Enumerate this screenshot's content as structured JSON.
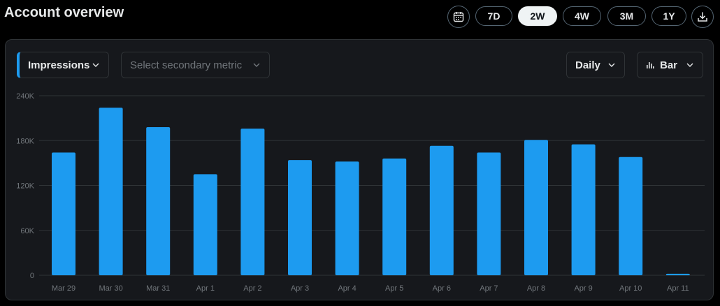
{
  "header": {
    "title": "Account overview",
    "ranges": [
      {
        "label": "7D",
        "active": false
      },
      {
        "label": "2W",
        "active": true
      },
      {
        "label": "4W",
        "active": false
      },
      {
        "label": "3M",
        "active": false
      },
      {
        "label": "1Y",
        "active": false
      }
    ],
    "calendar_icon": "calendar-icon",
    "download_icon": "download-icon"
  },
  "controls": {
    "primary_metric": "Impressions",
    "secondary_metric_placeholder": "Select secondary metric",
    "interval": "Daily",
    "chart_type": "Bar",
    "chart_type_icon": "bar-chart-icon"
  },
  "colors": {
    "bar": "#1d9bf0",
    "grid": "#2f3336",
    "card_bg": "#16181c"
  },
  "chart_data": {
    "type": "bar",
    "categories": [
      "Mar 29",
      "Mar 30",
      "Mar 31",
      "Apr 1",
      "Apr 2",
      "Apr 3",
      "Apr 4",
      "Apr 5",
      "Apr 6",
      "Apr 7",
      "Apr 8",
      "Apr 9",
      "Apr 10",
      "Apr 11"
    ],
    "values": [
      164000,
      224000,
      198000,
      135000,
      196000,
      154000,
      152000,
      156000,
      173000,
      164000,
      181000,
      175000,
      158000,
      2000
    ],
    "yticks": [
      {
        "value": 0,
        "label": "0"
      },
      {
        "value": 60000,
        "label": "60K"
      },
      {
        "value": 120000,
        "label": "120K"
      },
      {
        "value": 180000,
        "label": "180K"
      },
      {
        "value": 240000,
        "label": "240K"
      }
    ],
    "ylim": [
      0,
      240000
    ],
    "grid": true,
    "xlabel": "",
    "ylabel": ""
  }
}
